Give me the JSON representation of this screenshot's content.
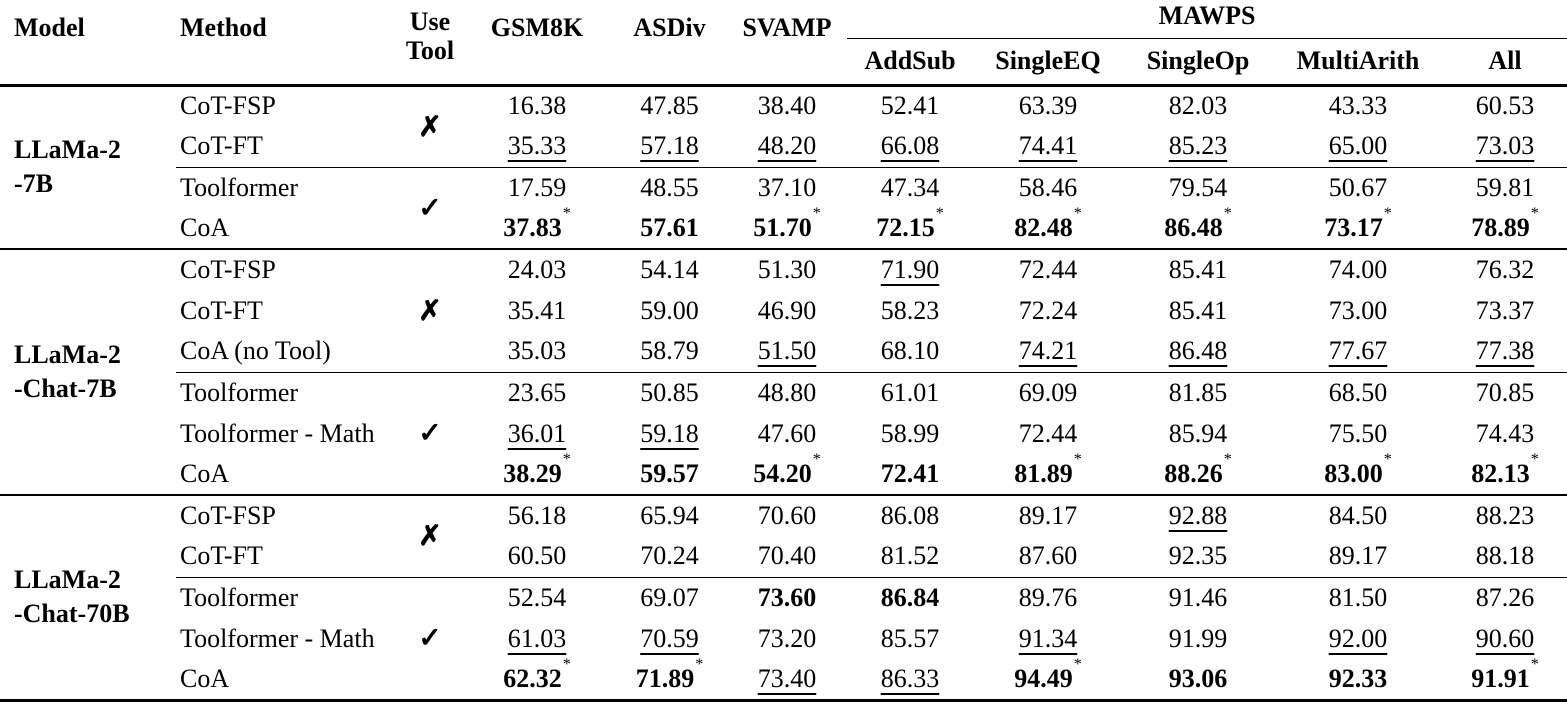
{
  "table": {
    "headers": {
      "model": "Model",
      "method": "Method",
      "use_tool_line1": "Use",
      "use_tool_line2": "Tool",
      "benchmarks": [
        "GSM8K",
        "ASDiv",
        "SVAMP"
      ],
      "mawps_label": "MAWPS",
      "mawps_columns": [
        "AddSub",
        "SingleEQ",
        "SingleOp",
        "MultiArith",
        "All"
      ]
    },
    "symbols": {
      "check": "✓",
      "cross": "✗",
      "star": "*"
    },
    "blocks": [
      {
        "model_lines": [
          "LLaMa-2",
          "-7B"
        ],
        "groups": [
          {
            "tool": "cross",
            "rows": [
              {
                "method": "CoT-FSP",
                "scores": [
                  {
                    "v": "16.38"
                  },
                  {
                    "v": "47.85"
                  },
                  {
                    "v": "38.40"
                  },
                  {
                    "v": "52.41"
                  },
                  {
                    "v": "63.39"
                  },
                  {
                    "v": "82.03"
                  },
                  {
                    "v": "43.33"
                  },
                  {
                    "v": "60.53"
                  }
                ]
              },
              {
                "method": "CoT-FT",
                "scores": [
                  {
                    "v": "35.33",
                    "f": "u"
                  },
                  {
                    "v": "57.18",
                    "f": "u"
                  },
                  {
                    "v": "48.20",
                    "f": "u"
                  },
                  {
                    "v": "66.08",
                    "f": "u"
                  },
                  {
                    "v": "74.41",
                    "f": "u"
                  },
                  {
                    "v": "85.23",
                    "f": "u"
                  },
                  {
                    "v": "65.00",
                    "f": "u"
                  },
                  {
                    "v": "73.03",
                    "f": "u"
                  }
                ]
              }
            ]
          },
          {
            "tool": "check",
            "rows": [
              {
                "method": "Toolformer",
                "scores": [
                  {
                    "v": "17.59"
                  },
                  {
                    "v": "48.55"
                  },
                  {
                    "v": "37.10"
                  },
                  {
                    "v": "47.34"
                  },
                  {
                    "v": "58.46"
                  },
                  {
                    "v": "79.54"
                  },
                  {
                    "v": "50.67"
                  },
                  {
                    "v": "59.81"
                  }
                ]
              },
              {
                "method": "CoA",
                "scores": [
                  {
                    "v": "37.83",
                    "f": "b*"
                  },
                  {
                    "v": "57.61",
                    "f": "b"
                  },
                  {
                    "v": "51.70",
                    "f": "b*"
                  },
                  {
                    "v": "72.15",
                    "f": "b*"
                  },
                  {
                    "v": "82.48",
                    "f": "b*"
                  },
                  {
                    "v": "86.48",
                    "f": "b*"
                  },
                  {
                    "v": "73.17",
                    "f": "b*"
                  },
                  {
                    "v": "78.89",
                    "f": "b*"
                  }
                ]
              }
            ]
          }
        ]
      },
      {
        "model_lines": [
          "LLaMa-2",
          "-Chat-7B"
        ],
        "groups": [
          {
            "tool": "cross",
            "rows": [
              {
                "method": "CoT-FSP",
                "scores": [
                  {
                    "v": "24.03"
                  },
                  {
                    "v": "54.14"
                  },
                  {
                    "v": "51.30"
                  },
                  {
                    "v": "71.90",
                    "f": "u"
                  },
                  {
                    "v": "72.44"
                  },
                  {
                    "v": "85.41"
                  },
                  {
                    "v": "74.00"
                  },
                  {
                    "v": "76.32"
                  }
                ]
              },
              {
                "method": "CoT-FT",
                "scores": [
                  {
                    "v": "35.41"
                  },
                  {
                    "v": "59.00"
                  },
                  {
                    "v": "46.90"
                  },
                  {
                    "v": "58.23"
                  },
                  {
                    "v": "72.24"
                  },
                  {
                    "v": "85.41"
                  },
                  {
                    "v": "73.00"
                  },
                  {
                    "v": "73.37"
                  }
                ]
              },
              {
                "method": "CoA (no Tool)",
                "scores": [
                  {
                    "v": "35.03"
                  },
                  {
                    "v": "58.79"
                  },
                  {
                    "v": "51.50",
                    "f": "u"
                  },
                  {
                    "v": "68.10"
                  },
                  {
                    "v": "74.21",
                    "f": "u"
                  },
                  {
                    "v": "86.48",
                    "f": "u"
                  },
                  {
                    "v": "77.67",
                    "f": "u"
                  },
                  {
                    "v": "77.38",
                    "f": "u"
                  }
                ]
              }
            ]
          },
          {
            "tool": "check",
            "rows": [
              {
                "method": "Toolformer",
                "scores": [
                  {
                    "v": "23.65"
                  },
                  {
                    "v": "50.85"
                  },
                  {
                    "v": "48.80"
                  },
                  {
                    "v": "61.01"
                  },
                  {
                    "v": "69.09"
                  },
                  {
                    "v": "81.85"
                  },
                  {
                    "v": "68.50"
                  },
                  {
                    "v": "70.85"
                  }
                ]
              },
              {
                "method": "Toolformer - Math",
                "scores": [
                  {
                    "v": "36.01",
                    "f": "u"
                  },
                  {
                    "v": "59.18",
                    "f": "u"
                  },
                  {
                    "v": "47.60"
                  },
                  {
                    "v": "58.99"
                  },
                  {
                    "v": "72.44"
                  },
                  {
                    "v": "85.94"
                  },
                  {
                    "v": "75.50"
                  },
                  {
                    "v": "74.43"
                  }
                ]
              },
              {
                "method": "CoA",
                "scores": [
                  {
                    "v": "38.29",
                    "f": "b*"
                  },
                  {
                    "v": "59.57",
                    "f": "b"
                  },
                  {
                    "v": "54.20",
                    "f": "b*"
                  },
                  {
                    "v": "72.41",
                    "f": "b"
                  },
                  {
                    "v": "81.89",
                    "f": "b*"
                  },
                  {
                    "v": "88.26",
                    "f": "b*"
                  },
                  {
                    "v": "83.00",
                    "f": "b*"
                  },
                  {
                    "v": "82.13",
                    "f": "b*"
                  }
                ]
              }
            ]
          }
        ]
      },
      {
        "model_lines": [
          "LLaMa-2",
          "-Chat-70B"
        ],
        "groups": [
          {
            "tool": "cross",
            "rows": [
              {
                "method": "CoT-FSP",
                "scores": [
                  {
                    "v": "56.18"
                  },
                  {
                    "v": "65.94"
                  },
                  {
                    "v": "70.60"
                  },
                  {
                    "v": "86.08"
                  },
                  {
                    "v": "89.17"
                  },
                  {
                    "v": "92.88",
                    "f": "u"
                  },
                  {
                    "v": "84.50"
                  },
                  {
                    "v": "88.23"
                  }
                ]
              },
              {
                "method": "CoT-FT",
                "scores": [
                  {
                    "v": "60.50"
                  },
                  {
                    "v": "70.24"
                  },
                  {
                    "v": "70.40"
                  },
                  {
                    "v": "81.52"
                  },
                  {
                    "v": "87.60"
                  },
                  {
                    "v": "92.35"
                  },
                  {
                    "v": "89.17"
                  },
                  {
                    "v": "88.18"
                  }
                ]
              }
            ]
          },
          {
            "tool": "check",
            "rows": [
              {
                "method": "Toolformer",
                "scores": [
                  {
                    "v": "52.54"
                  },
                  {
                    "v": "69.07"
                  },
                  {
                    "v": "73.60",
                    "f": "b"
                  },
                  {
                    "v": "86.84",
                    "f": "b"
                  },
                  {
                    "v": "89.76"
                  },
                  {
                    "v": "91.46"
                  },
                  {
                    "v": "81.50"
                  },
                  {
                    "v": "87.26"
                  }
                ]
              },
              {
                "method": "Toolformer - Math",
                "scores": [
                  {
                    "v": "61.03",
                    "f": "u"
                  },
                  {
                    "v": "70.59",
                    "f": "u"
                  },
                  {
                    "v": "73.20"
                  },
                  {
                    "v": "85.57"
                  },
                  {
                    "v": "91.34",
                    "f": "u"
                  },
                  {
                    "v": "91.99"
                  },
                  {
                    "v": "92.00",
                    "f": "u"
                  },
                  {
                    "v": "90.60",
                    "f": "u"
                  }
                ]
              },
              {
                "method": "CoA",
                "scores": [
                  {
                    "v": "62.32",
                    "f": "b*"
                  },
                  {
                    "v": "71.89",
                    "f": "b*"
                  },
                  {
                    "v": "73.40",
                    "f": "u"
                  },
                  {
                    "v": "86.33",
                    "f": "u"
                  },
                  {
                    "v": "94.49",
                    "f": "b*"
                  },
                  {
                    "v": "93.06",
                    "f": "b"
                  },
                  {
                    "v": "92.33",
                    "f": "b"
                  },
                  {
                    "v": "91.91",
                    "f": "b*"
                  }
                ]
              }
            ]
          }
        ]
      }
    ]
  }
}
